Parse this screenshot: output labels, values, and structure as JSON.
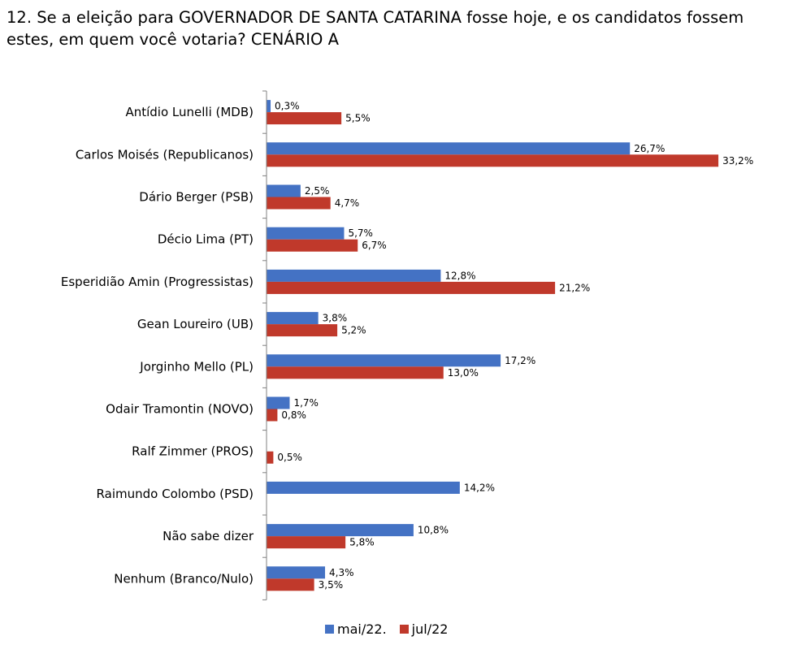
{
  "chart_data": {
    "type": "bar",
    "orientation": "horizontal",
    "title": "12. Se a eleição para GOVERNADOR DE SANTA CATARINA fosse hoje, e os candidatos fossem estes, em quem você votaria? CENÁRIO A",
    "categories": [
      "Antídio Lunelli (MDB)",
      "Carlos Moisés (Republicanos)",
      "Dário Berger (PSB)",
      "Décio Lima (PT)",
      "Esperidião Amin (Progressistas)",
      "Gean Loureiro (UB)",
      "Jorginho Mello (PL)",
      "Odair Tramontin (NOVO)",
      "Ralf Zimmer (PROS)",
      "Raimundo Colombo (PSD)",
      "Não sabe dizer",
      "Nenhum (Branco/Nulo)"
    ],
    "series": [
      {
        "name": "mai/22.",
        "color": "#4472C4",
        "values": [
          0.3,
          26.7,
          2.5,
          5.7,
          12.8,
          3.8,
          17.2,
          1.7,
          null,
          14.2,
          10.8,
          4.3
        ],
        "labels": [
          "0,3%",
          "26,7%",
          "2,5%",
          "5,7%",
          "12,8%",
          "3,8%",
          "17,2%",
          "1,7%",
          "",
          "14,2%",
          "10,8%",
          "4,3%"
        ]
      },
      {
        "name": "jul/22",
        "color": "#C0392B",
        "values": [
          5.5,
          33.2,
          4.7,
          6.7,
          21.2,
          5.2,
          13.0,
          0.8,
          0.5,
          null,
          5.8,
          3.5
        ],
        "labels": [
          "5,5%",
          "33,2%",
          "4,7%",
          "6,7%",
          "21,2%",
          "5,2%",
          "13,0%",
          "0,8%",
          "0,5%",
          "",
          "5,8%",
          "3,5%"
        ]
      }
    ],
    "legend_position": "bottom",
    "grid": false
  }
}
